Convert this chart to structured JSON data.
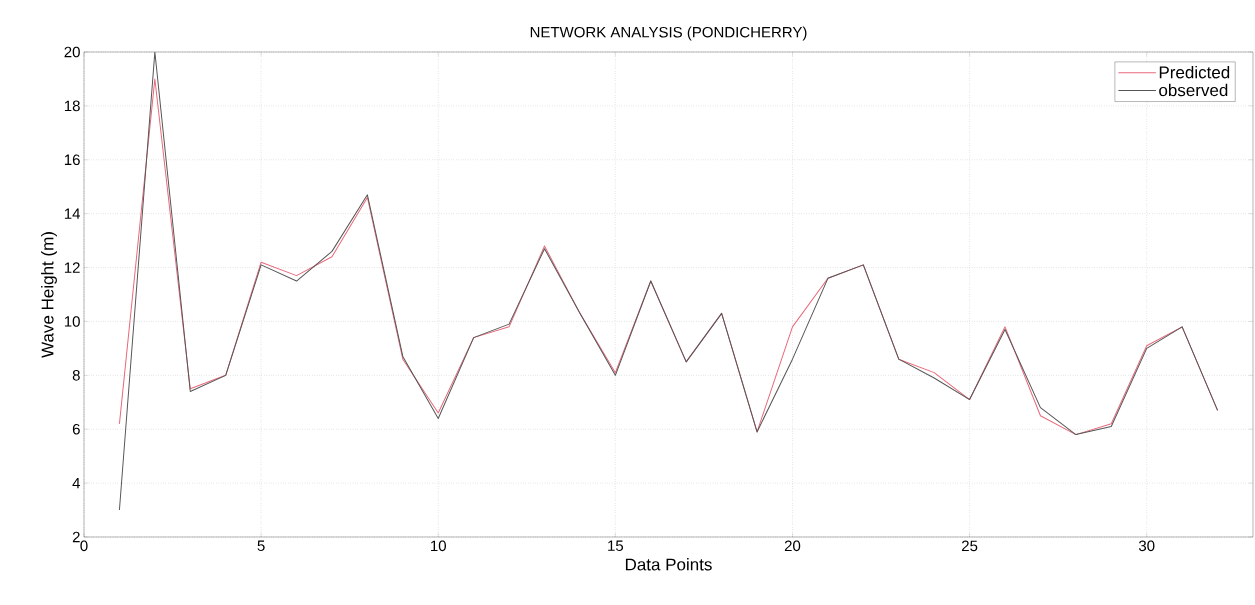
{
  "chart_data": {
    "type": "line",
    "title": "NETWORK ANALYSIS (PONDICHERRY)",
    "xlabel": "Data Points",
    "ylabel": "Wave Height (m)",
    "x": [
      1,
      2,
      3,
      4,
      5,
      6,
      7,
      8,
      9,
      10,
      11,
      12,
      13,
      14,
      15,
      16,
      17,
      18,
      19,
      20,
      21,
      22,
      23,
      24,
      25,
      26,
      27,
      28,
      29,
      30,
      31,
      32
    ],
    "series": [
      {
        "name": "Predicted",
        "color": "#e8697a",
        "values": [
          6.2,
          19,
          7.5,
          8,
          12.2,
          11.7,
          12.4,
          14.6,
          8.6,
          6.6,
          9.4,
          9.8,
          12.8,
          10.3,
          8.1,
          11.5,
          8.5,
          10.3,
          5.9,
          9.8,
          11.6,
          12.1,
          8.6,
          8.1,
          7.1,
          9.8,
          6.5,
          5.8,
          6.2,
          9.1,
          9.8,
          6.7
        ]
      },
      {
        "name": "observed",
        "color": "#555555",
        "values": [
          3,
          20,
          7.4,
          8,
          12.1,
          11.5,
          12.6,
          14.7,
          8.7,
          6.4,
          9.4,
          9.9,
          12.7,
          10.3,
          8.0,
          11.5,
          8.5,
          10.3,
          5.9,
          8.6,
          11.6,
          12.1,
          8.6,
          7.9,
          7.1,
          9.7,
          6.8,
          5.8,
          6.1,
          9.0,
          9.8,
          6.7
        ]
      }
    ],
    "xlim": [
      0,
      33
    ],
    "ylim": [
      2,
      20
    ],
    "xticks": [
      0,
      5,
      10,
      15,
      20,
      25,
      30
    ],
    "yticks": [
      2,
      4,
      6,
      8,
      10,
      12,
      14,
      16,
      18,
      20
    ],
    "grid": true,
    "legend": "top right",
    "line_style": "solid"
  }
}
